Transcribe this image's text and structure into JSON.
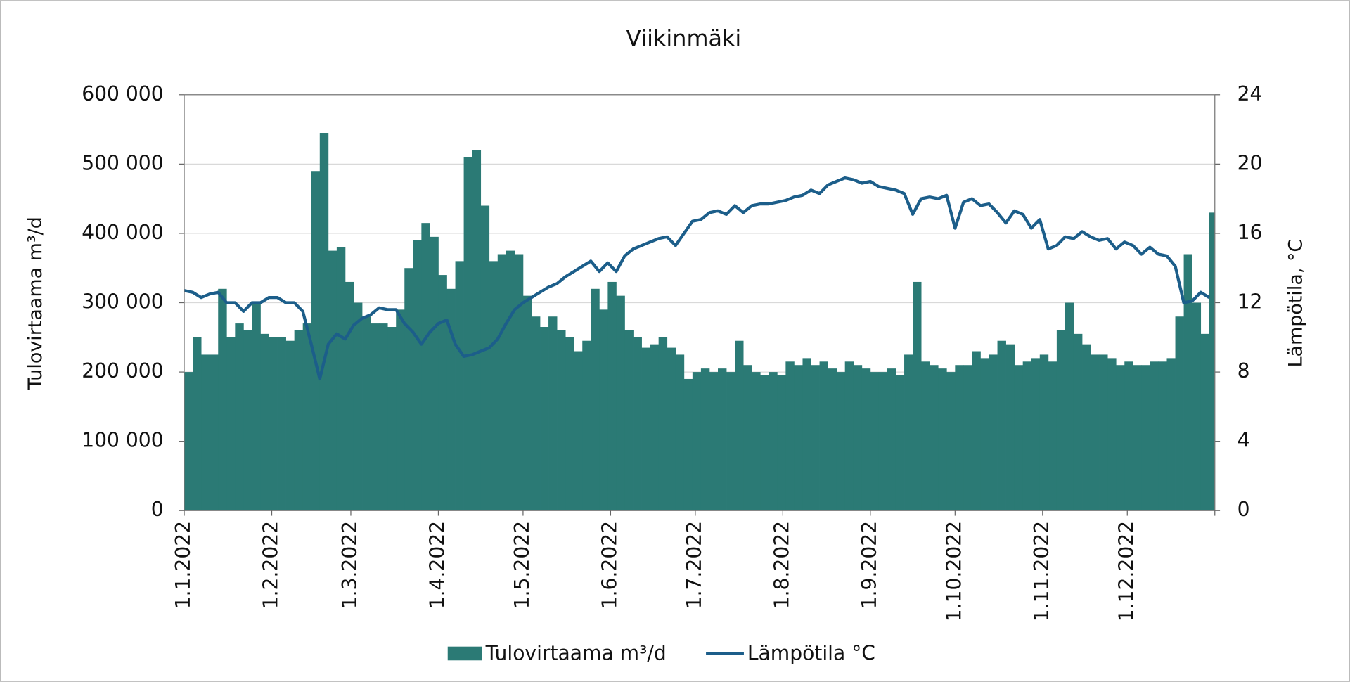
{
  "chart_data": {
    "type": "bar-line",
    "title": "Viikinmäki",
    "y_label": "Tulovirtaama m³/d",
    "y2_label": "Lämpötila, °C",
    "x": [
      0,
      3,
      6,
      9,
      12,
      15,
      18,
      21,
      24,
      27,
      30,
      33,
      36,
      39,
      42,
      45,
      48,
      51,
      54,
      57,
      60,
      63,
      66,
      69,
      72,
      75,
      78,
      81,
      84,
      87,
      90,
      93,
      96,
      99,
      102,
      105,
      108,
      111,
      114,
      117,
      120,
      123,
      126,
      129,
      132,
      135,
      138,
      141,
      144,
      147,
      150,
      153,
      156,
      159,
      162,
      165,
      168,
      171,
      174,
      177,
      180,
      183,
      186,
      189,
      192,
      195,
      198,
      201,
      204,
      207,
      210,
      213,
      216,
      219,
      222,
      225,
      228,
      231,
      234,
      237,
      240,
      243,
      246,
      249,
      252,
      255,
      258,
      261,
      264,
      267,
      270,
      273,
      276,
      279,
      282,
      285,
      288,
      291,
      294,
      297,
      300,
      303,
      306,
      309,
      312,
      315,
      318,
      321,
      324,
      327,
      330,
      333,
      336,
      339,
      342,
      345,
      348,
      351,
      354,
      357,
      360,
      363
    ],
    "xlim": [
      0,
      365
    ],
    "xticks": [
      {
        "value": 0,
        "label": "1.1.2022"
      },
      {
        "value": 31,
        "label": "1.2.2022"
      },
      {
        "value": 59,
        "label": "1.3.2022"
      },
      {
        "value": 90,
        "label": "1.4.2022"
      },
      {
        "value": 120,
        "label": "1.5.2022"
      },
      {
        "value": 151,
        "label": "1.6.2022"
      },
      {
        "value": 181,
        "label": "1.7.2022"
      },
      {
        "value": 212,
        "label": "1.8.2022"
      },
      {
        "value": 243,
        "label": "1.9.2022"
      },
      {
        "value": 273,
        "label": "1.10.2022"
      },
      {
        "value": 304,
        "label": "1.11.2022"
      },
      {
        "value": 334,
        "label": "1.12.2022"
      }
    ],
    "ylim": [
      0,
      600000
    ],
    "yticks": [
      0,
      {
        "value": 100000,
        "label": "100 000"
      },
      {
        "value": 200000,
        "label": "200 000"
      },
      {
        "value": 300000,
        "label": "300 000"
      },
      {
        "value": 400000,
        "label": "400 000"
      },
      {
        "value": 500000,
        "label": "500 000"
      },
      {
        "value": 600000,
        "label": "600 000"
      }
    ],
    "y2lim": [
      0,
      24
    ],
    "y2ticks": [
      0,
      4,
      8,
      12,
      16,
      20,
      24
    ],
    "grid": true,
    "series": [
      {
        "name": "Tulovirtaama m³/d",
        "type": "bar",
        "color": "#2b7a75",
        "values": [
          200000,
          250000,
          225000,
          225000,
          320000,
          250000,
          270000,
          260000,
          300000,
          255000,
          250000,
          250000,
          245000,
          260000,
          270000,
          490000,
          545000,
          375000,
          380000,
          330000,
          300000,
          280000,
          270000,
          270000,
          265000,
          290000,
          350000,
          390000,
          415000,
          395000,
          340000,
          320000,
          360000,
          510000,
          520000,
          440000,
          360000,
          370000,
          375000,
          370000,
          310000,
          280000,
          265000,
          280000,
          260000,
          250000,
          230000,
          245000,
          320000,
          290000,
          330000,
          310000,
          260000,
          250000,
          235000,
          240000,
          250000,
          235000,
          225000,
          190000,
          200000,
          205000,
          200000,
          205000,
          200000,
          245000,
          210000,
          200000,
          195000,
          200000,
          195000,
          215000,
          210000,
          220000,
          210000,
          215000,
          205000,
          200000,
          215000,
          210000,
          205000,
          200000,
          200000,
          205000,
          195000,
          225000,
          330000,
          215000,
          210000,
          205000,
          200000,
          210000,
          210000,
          230000,
          220000,
          225000,
          245000,
          240000,
          210000,
          215000,
          220000,
          225000,
          215000,
          260000,
          300000,
          255000,
          240000,
          225000,
          225000,
          220000,
          210000,
          215000,
          210000,
          210000,
          215000,
          215000,
          220000,
          280000,
          370000,
          300000,
          255000,
          430000
        ]
      },
      {
        "name": "Lämpötila °C",
        "type": "line",
        "axis": "y2",
        "color": "#1c5e8a",
        "values": [
          12.7,
          12.6,
          12.3,
          12.5,
          12.6,
          12.0,
          12.0,
          11.5,
          12.0,
          12.0,
          12.3,
          12.3,
          12.0,
          12.0,
          11.5,
          9.6,
          7.6,
          9.6,
          10.2,
          9.9,
          10.7,
          11.1,
          11.3,
          11.7,
          11.6,
          11.6,
          10.8,
          10.3,
          9.6,
          10.3,
          10.8,
          11.0,
          9.6,
          8.9,
          9.0,
          9.2,
          9.4,
          9.9,
          10.8,
          11.6,
          12.0,
          12.3,
          12.6,
          12.9,
          13.1,
          13.5,
          13.8,
          14.1,
          14.4,
          13.8,
          14.3,
          13.8,
          14.7,
          15.1,
          15.3,
          15.5,
          15.7,
          15.8,
          15.3,
          16.0,
          16.7,
          16.8,
          17.2,
          17.3,
          17.1,
          17.6,
          17.2,
          17.6,
          17.7,
          17.7,
          17.8,
          17.9,
          18.1,
          18.2,
          18.5,
          18.3,
          18.8,
          19.0,
          19.2,
          19.1,
          18.9,
          19.0,
          18.7,
          18.6,
          18.5,
          18.3,
          17.1,
          18.0,
          18.1,
          18.0,
          18.2,
          16.3,
          17.8,
          18.0,
          17.6,
          17.7,
          17.2,
          16.6,
          17.3,
          17.1,
          16.3,
          16.8,
          15.1,
          15.3,
          15.8,
          15.7,
          16.1,
          15.8,
          15.6,
          15.7,
          15.1,
          15.5,
          15.3,
          14.8,
          15.2,
          14.8,
          14.7,
          14.1,
          12.0,
          12.1,
          12.6,
          12.3
        ]
      }
    ]
  }
}
